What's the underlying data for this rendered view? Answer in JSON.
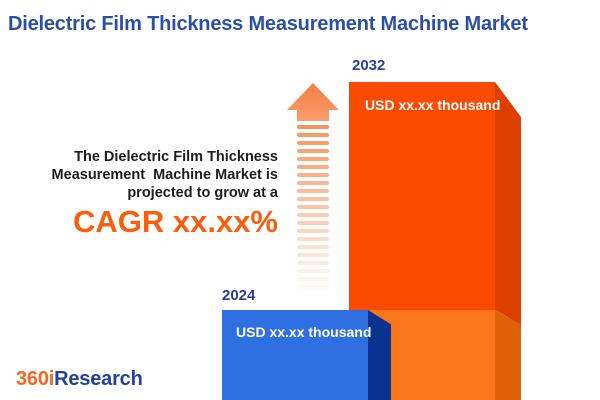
{
  "title": "Dielectric Film Thickness Measurement Machine Market",
  "description": {
    "lines": [
      "The Dielectric Film Thickness",
      "Measurement  Machine Market is",
      "projected to grow at a"
    ],
    "cagr": "CAGR xx.xx%"
  },
  "chart_data": {
    "type": "bar",
    "title": "Dielectric Film Thickness Measurement Machine Market",
    "categories": [
      "2024",
      "2032"
    ],
    "values": [
      "USD xx.xx thousand",
      "USD xx.xx thousand"
    ],
    "annotation": "The Dielectric Film Thickness Measurement Machine Market is projected to grow at a CAGR xx.xx%",
    "orientation": "vertical",
    "legend": "none",
    "grid": "off"
  },
  "logo": {
    "prefix": "360i",
    "suffix": "Research"
  },
  "colors": {
    "title_blue": "#2B4EA6",
    "year_label_blue": "#2B3E9B",
    "cagr_orange": "#F95D0E",
    "arrow_orange": "#F78E52",
    "bar_2024_front": "#2E6FE2",
    "bar_2024_side": "#0A3391",
    "bar_2032_front": "#FB4A02",
    "bar_2032_front_base": "#F9761A",
    "bar_2032_side": "#DC3F00",
    "bar_2032_side_base": "#E0610A",
    "logo_orange": "#F26A21",
    "logo_blue": "#24419B"
  }
}
